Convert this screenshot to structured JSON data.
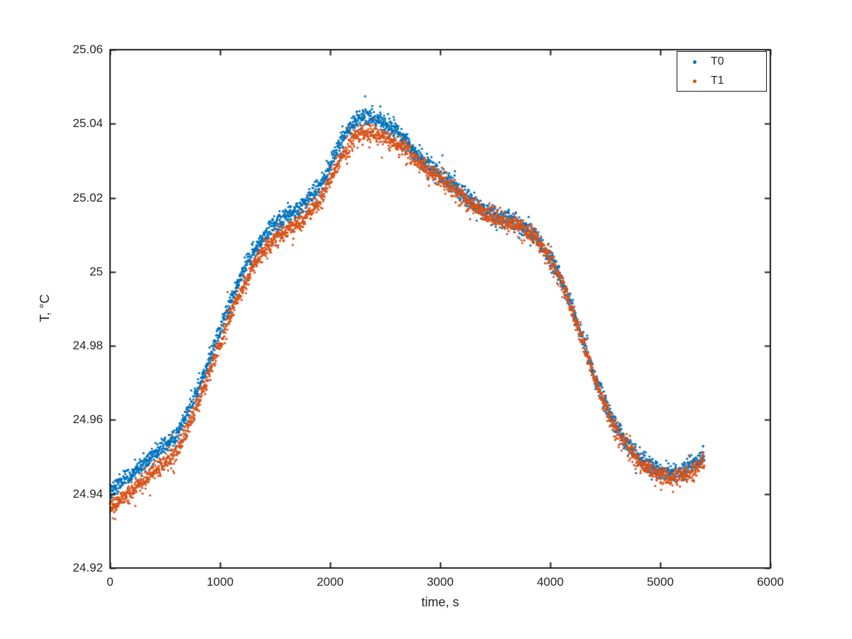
{
  "chart_data": {
    "type": "scatter",
    "title": "",
    "xlabel": "time, s",
    "ylabel": "T, °C",
    "xlim": [
      0,
      6000
    ],
    "ylim": [
      24.92,
      25.06
    ],
    "grid": false,
    "axis_color": "#1a1a1a",
    "tick_direction": "in",
    "box": true,
    "xticks": {
      "values": [
        0,
        1000,
        2000,
        3000,
        4000,
        5000,
        6000
      ],
      "labels": [
        "0",
        "1000",
        "2000",
        "3000",
        "4000",
        "5000",
        "6000"
      ]
    },
    "yticks": {
      "values": [
        24.92,
        24.94,
        24.96,
        24.98,
        25,
        25.02,
        25.04,
        25.06
      ],
      "labels": [
        "24.92",
        "24.94",
        "24.96",
        "24.98",
        "25",
        "25.02",
        "25.04",
        "25.06"
      ]
    },
    "legend": {
      "position": "northeast",
      "entries": [
        "T0",
        "T1"
      ]
    },
    "marker": "dot",
    "marker_radius_px": 1.6,
    "noise_sigma_degC": 0.0012,
    "sample_interval_s": 2,
    "t_start_s": 0,
    "t_end_s": 5400,
    "anchor_t_s": [
      0,
      100,
      200,
      300,
      400,
      500,
      600,
      700,
      800,
      900,
      1000,
      1100,
      1200,
      1300,
      1400,
      1500,
      1600,
      1700,
      1800,
      1900,
      2000,
      2100,
      2200,
      2300,
      2400,
      2500,
      2600,
      2700,
      2800,
      2900,
      3000,
      3100,
      3200,
      3300,
      3400,
      3500,
      3600,
      3700,
      3800,
      3900,
      4000,
      4100,
      4200,
      4300,
      4400,
      4500,
      4600,
      4700,
      4800,
      4900,
      5000,
      5100,
      5200,
      5300,
      5400
    ],
    "series": [
      {
        "name": "T0",
        "color": "#0072BD",
        "anchor_T_degC": [
          24.9405,
          24.943,
          24.9455,
          24.948,
          24.9505,
          24.953,
          24.9558,
          24.9615,
          24.9685,
          24.9765,
          24.9845,
          24.9925,
          24.9995,
          25.0055,
          25.01,
          25.0128,
          25.0148,
          25.0168,
          25.0192,
          25.0228,
          25.029,
          25.035,
          25.0395,
          25.042,
          25.0418,
          25.0402,
          25.038,
          25.0348,
          25.0312,
          25.0285,
          25.0262,
          25.0238,
          25.0212,
          25.0186,
          25.0166,
          25.015,
          25.0142,
          25.013,
          25.011,
          25.0082,
          25.004,
          24.998,
          24.99,
          24.9812,
          24.9722,
          24.9642,
          24.958,
          24.9535,
          24.9502,
          24.9478,
          24.9462,
          24.9455,
          24.9462,
          24.948,
          24.9505
        ]
      },
      {
        "name": "T1",
        "color": "#D95319",
        "anchor_T_degC": [
          24.936,
          24.9385,
          24.941,
          24.9435,
          24.946,
          24.9485,
          24.9513,
          24.9573,
          24.9645,
          24.9725,
          24.9805,
          24.9885,
          24.9955,
          25.0015,
          25.006,
          25.0088,
          25.0108,
          25.0128,
          25.0152,
          25.0188,
          25.0248,
          25.0308,
          25.0353,
          25.0378,
          25.0376,
          25.036,
          25.0345,
          25.0325,
          25.0295,
          25.0273,
          25.0253,
          25.023,
          25.0205,
          25.0179,
          25.0159,
          25.0145,
          25.0137,
          25.0125,
          25.0105,
          25.0077,
          25.0035,
          24.9975,
          24.9895,
          24.9806,
          24.9714,
          24.9634,
          24.9572,
          24.9527,
          24.9492,
          24.9466,
          24.945,
          24.9443,
          24.9448,
          24.9464,
          24.9487
        ]
      }
    ]
  }
}
